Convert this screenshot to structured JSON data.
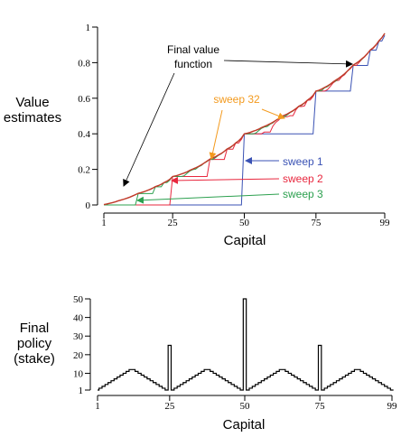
{
  "colors": {
    "final": "#c0392b",
    "sweep1": "#3a52b4",
    "sweep2": "#e8273e",
    "sweep3": "#2ca04f",
    "sweep32": "#f39a1e",
    "axis": "#000000",
    "policy": "#000000"
  },
  "chart_data": [
    {
      "type": "line",
      "title": "",
      "ylabel_lines": [
        "Value",
        "estimates"
      ],
      "xlabel": "Capital",
      "xlim": [
        1,
        99
      ],
      "ylim": [
        0,
        1
      ],
      "x_ticks": [
        1,
        25,
        50,
        75,
        99
      ],
      "y_ticks": [
        0,
        0.2,
        0.4,
        0.6,
        0.8,
        1
      ],
      "y_tick_labels": [
        "0",
        "0.2",
        "0.4",
        "0.6",
        "0.8",
        "1"
      ],
      "grid": false,
      "series": [
        {
          "name": "Final value function",
          "key": "final",
          "color_key": "final"
        },
        {
          "name": "sweep 1",
          "key": "sweep1",
          "color_key": "sweep1"
        },
        {
          "name": "sweep 2",
          "key": "sweep2",
          "color_key": "sweep2"
        },
        {
          "name": "sweep 3",
          "key": "sweep3",
          "color_key": "sweep3"
        },
        {
          "name": "sweep 32",
          "key": "sweep32",
          "color_key": "sweep32"
        }
      ],
      "annotations": {
        "final_lines": [
          "Final value",
          "function"
        ],
        "sweep1": "sweep 1",
        "sweep2": "sweep 2",
        "sweep3": "sweep 3",
        "sweep32": "sweep 32"
      }
    },
    {
      "type": "line",
      "title": "",
      "ylabel_lines": [
        "Final",
        "policy",
        "(stake)"
      ],
      "xlabel": "Capital",
      "xlim": [
        1,
        99
      ],
      "ylim": [
        1,
        50
      ],
      "x_ticks": [
        1,
        25,
        50,
        75,
        99
      ],
      "y_ticks": [
        1,
        10,
        20,
        30,
        40,
        50
      ],
      "grid": false,
      "series": [
        {
          "name": "",
          "stake_rule": "min(s, 100-s) for s=1..99, spikes at 25, 50, 75"
        }
      ]
    }
  ]
}
